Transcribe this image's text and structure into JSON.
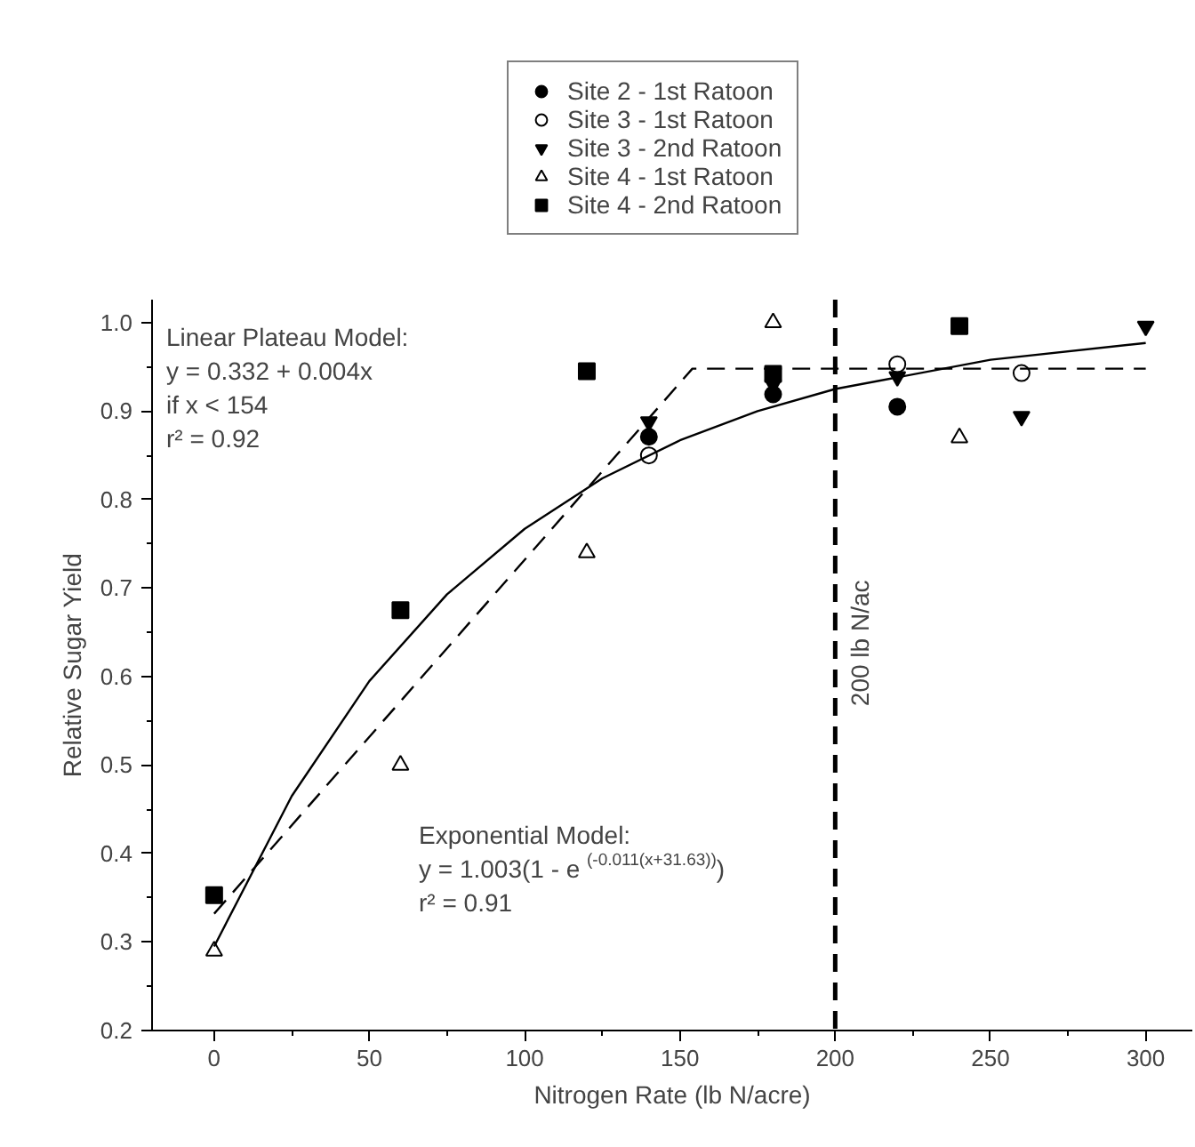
{
  "chart_data": {
    "type": "scatter",
    "xlabel": "Nitrogen Rate (lb N/acre)",
    "ylabel": "Relative Sugar Yield",
    "xlim": [
      -20,
      315
    ],
    "ylim": [
      0.2,
      1.026
    ],
    "xticks": [
      0,
      50,
      100,
      150,
      200,
      250,
      300
    ],
    "yticks": [
      0.2,
      0.3,
      0.4,
      0.5,
      0.6,
      0.7,
      0.8,
      0.9,
      {
        "value": 1.0,
        "label": "1.0"
      }
    ],
    "grid": false,
    "legend": "top",
    "series": [
      {
        "name": "Site 2 - 1st Ratoon",
        "color": "#000000",
        "marker": "circle",
        "x": [
          140,
          180,
          220
        ],
        "values": [
          0.871,
          0.919,
          0.905
        ]
      },
      {
        "name": "Site 3 - 1st Ratoon",
        "color": "#000000",
        "marker": "circle-open",
        "x": [
          140,
          220,
          260
        ],
        "values": [
          0.85,
          0.953,
          0.943
        ]
      },
      {
        "name": "Site 3 - 2nd Ratoon",
        "color": "#000000",
        "marker": "triangle_down",
        "x": [
          140,
          180,
          220,
          260,
          300
        ],
        "values": [
          0.888,
          0.93,
          0.939,
          0.894,
          0.996
        ]
      },
      {
        "name": "Site 4 - 1st Ratoon",
        "color": "#000000",
        "marker": "triangle-open",
        "x": [
          0,
          60,
          120,
          180,
          240
        ],
        "values": [
          0.29,
          0.5,
          0.74,
          1.0,
          0.87
        ]
      },
      {
        "name": "Site 4 - 2nd Ratoon",
        "color": "#000000",
        "marker": "square",
        "x": [
          0,
          60,
          120,
          180,
          240
        ],
        "values": [
          0.353,
          0.675,
          0.945,
          0.942,
          0.996
        ]
      },
      {
        "type": "line",
        "color": "#000000",
        "marker": "none",
        "line_style": "solid",
        "x": [
          0,
          25,
          50,
          75,
          100,
          125,
          150,
          175,
          200,
          250,
          300
        ],
        "values": [
          0.295,
          0.465,
          0.595,
          0.693,
          0.767,
          0.824,
          0.867,
          0.9,
          0.925,
          0.958,
          0.977
        ]
      },
      {
        "type": "line",
        "color": "#000000",
        "marker": "none",
        "line_style": "dashed",
        "x": [
          0,
          154,
          300
        ],
        "values": [
          0.332,
          0.948,
          0.948
        ]
      }
    ],
    "ref_lines": [
      {
        "axis": "x",
        "value": 200,
        "label": "200 lb N/ac",
        "color": "#000000",
        "line_style": "dashed"
      }
    ],
    "annotations": [
      "Linear Plateau Model:",
      "y = 0.332 + 0.004x",
      "if x < 154",
      "r² = 0.92",
      "Exponential Model:",
      "y = 1.003(1 - e$^{(-0.011(x+31.63))}$)",
      "r² = 0.91"
    ]
  }
}
